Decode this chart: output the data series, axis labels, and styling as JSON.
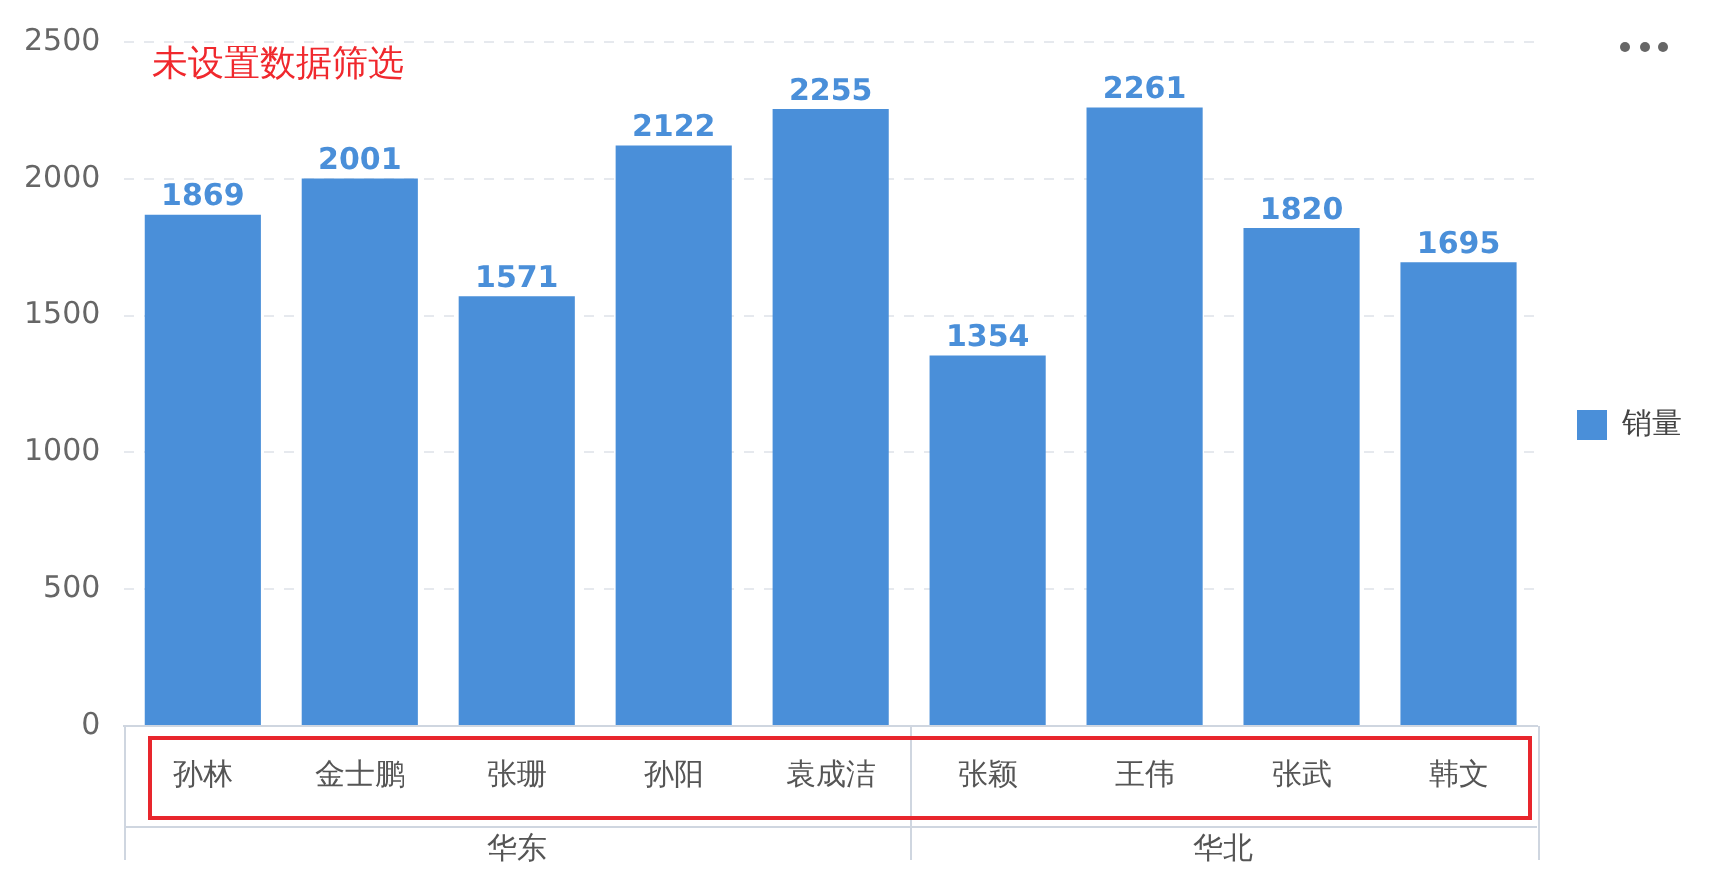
{
  "chart_data": {
    "type": "bar",
    "title": "未设置数据筛选",
    "categories": [
      "孙林",
      "金士鹏",
      "张珊",
      "孙阳",
      "袁成洁",
      "张颖",
      "王伟",
      "张武",
      "韩文"
    ],
    "series": [
      {
        "name": "销量",
        "color": "#4a8fd9",
        "values": [
          1869,
          2001,
          1571,
          2122,
          2255,
          1354,
          2261,
          1820,
          1695
        ]
      }
    ],
    "annotations": [
      "华东",
      "华北"
    ],
    "ylim": [
      0,
      2500
    ],
    "yticks": [
      0,
      500,
      1000,
      1500,
      2000,
      2500
    ],
    "grid": "y",
    "legend": "right",
    "data_labels": true
  }
}
